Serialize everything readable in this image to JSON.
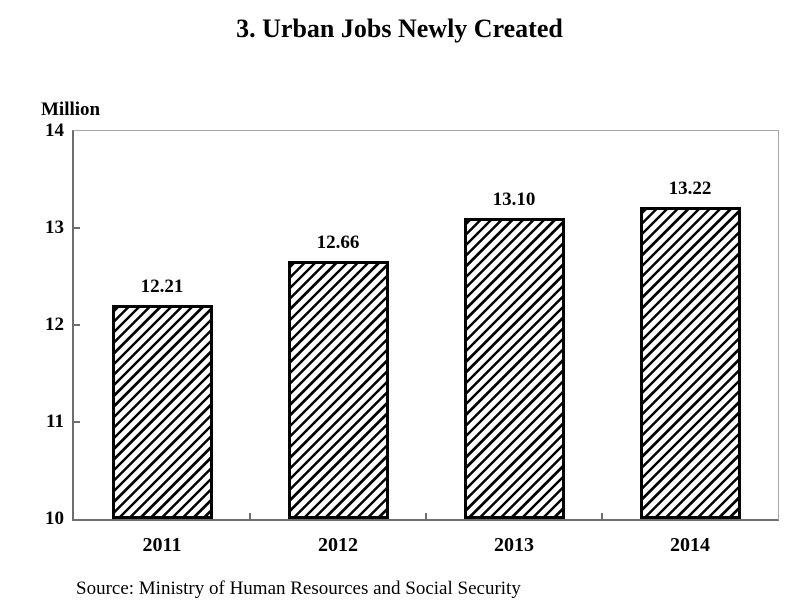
{
  "title": "3. Urban Jobs Newly Created",
  "source_note": "Source: Ministry of Human Resources and Social Security",
  "colors": {
    "background": "#ffffff",
    "text": "#000000",
    "axis_line": "#6e6e6e",
    "plot_border": "#a6a6a6",
    "bar_fill": "#ffffff",
    "bar_hatch": "#000000",
    "bar_border": "#000000"
  },
  "chart_data": {
    "type": "bar",
    "title": "3. Urban Jobs Newly Created",
    "categories": [
      "2011",
      "2012",
      "2013",
      "2014"
    ],
    "values": [
      12.21,
      12.66,
      13.1,
      13.22
    ],
    "data_labels": [
      "12.21",
      "12.66",
      "13.10",
      "13.22"
    ],
    "xlabel": "",
    "ylabel": "Million",
    "ylim": [
      10,
      14
    ],
    "yticks": [
      10,
      11,
      12,
      13,
      14
    ],
    "ytick_labels": [
      "10",
      "11",
      "12",
      "13",
      "14"
    ],
    "grid": false,
    "legend_position": "none",
    "bar_style": "diagonal-hatch",
    "source": "Ministry of Human Resources and Social Security"
  }
}
